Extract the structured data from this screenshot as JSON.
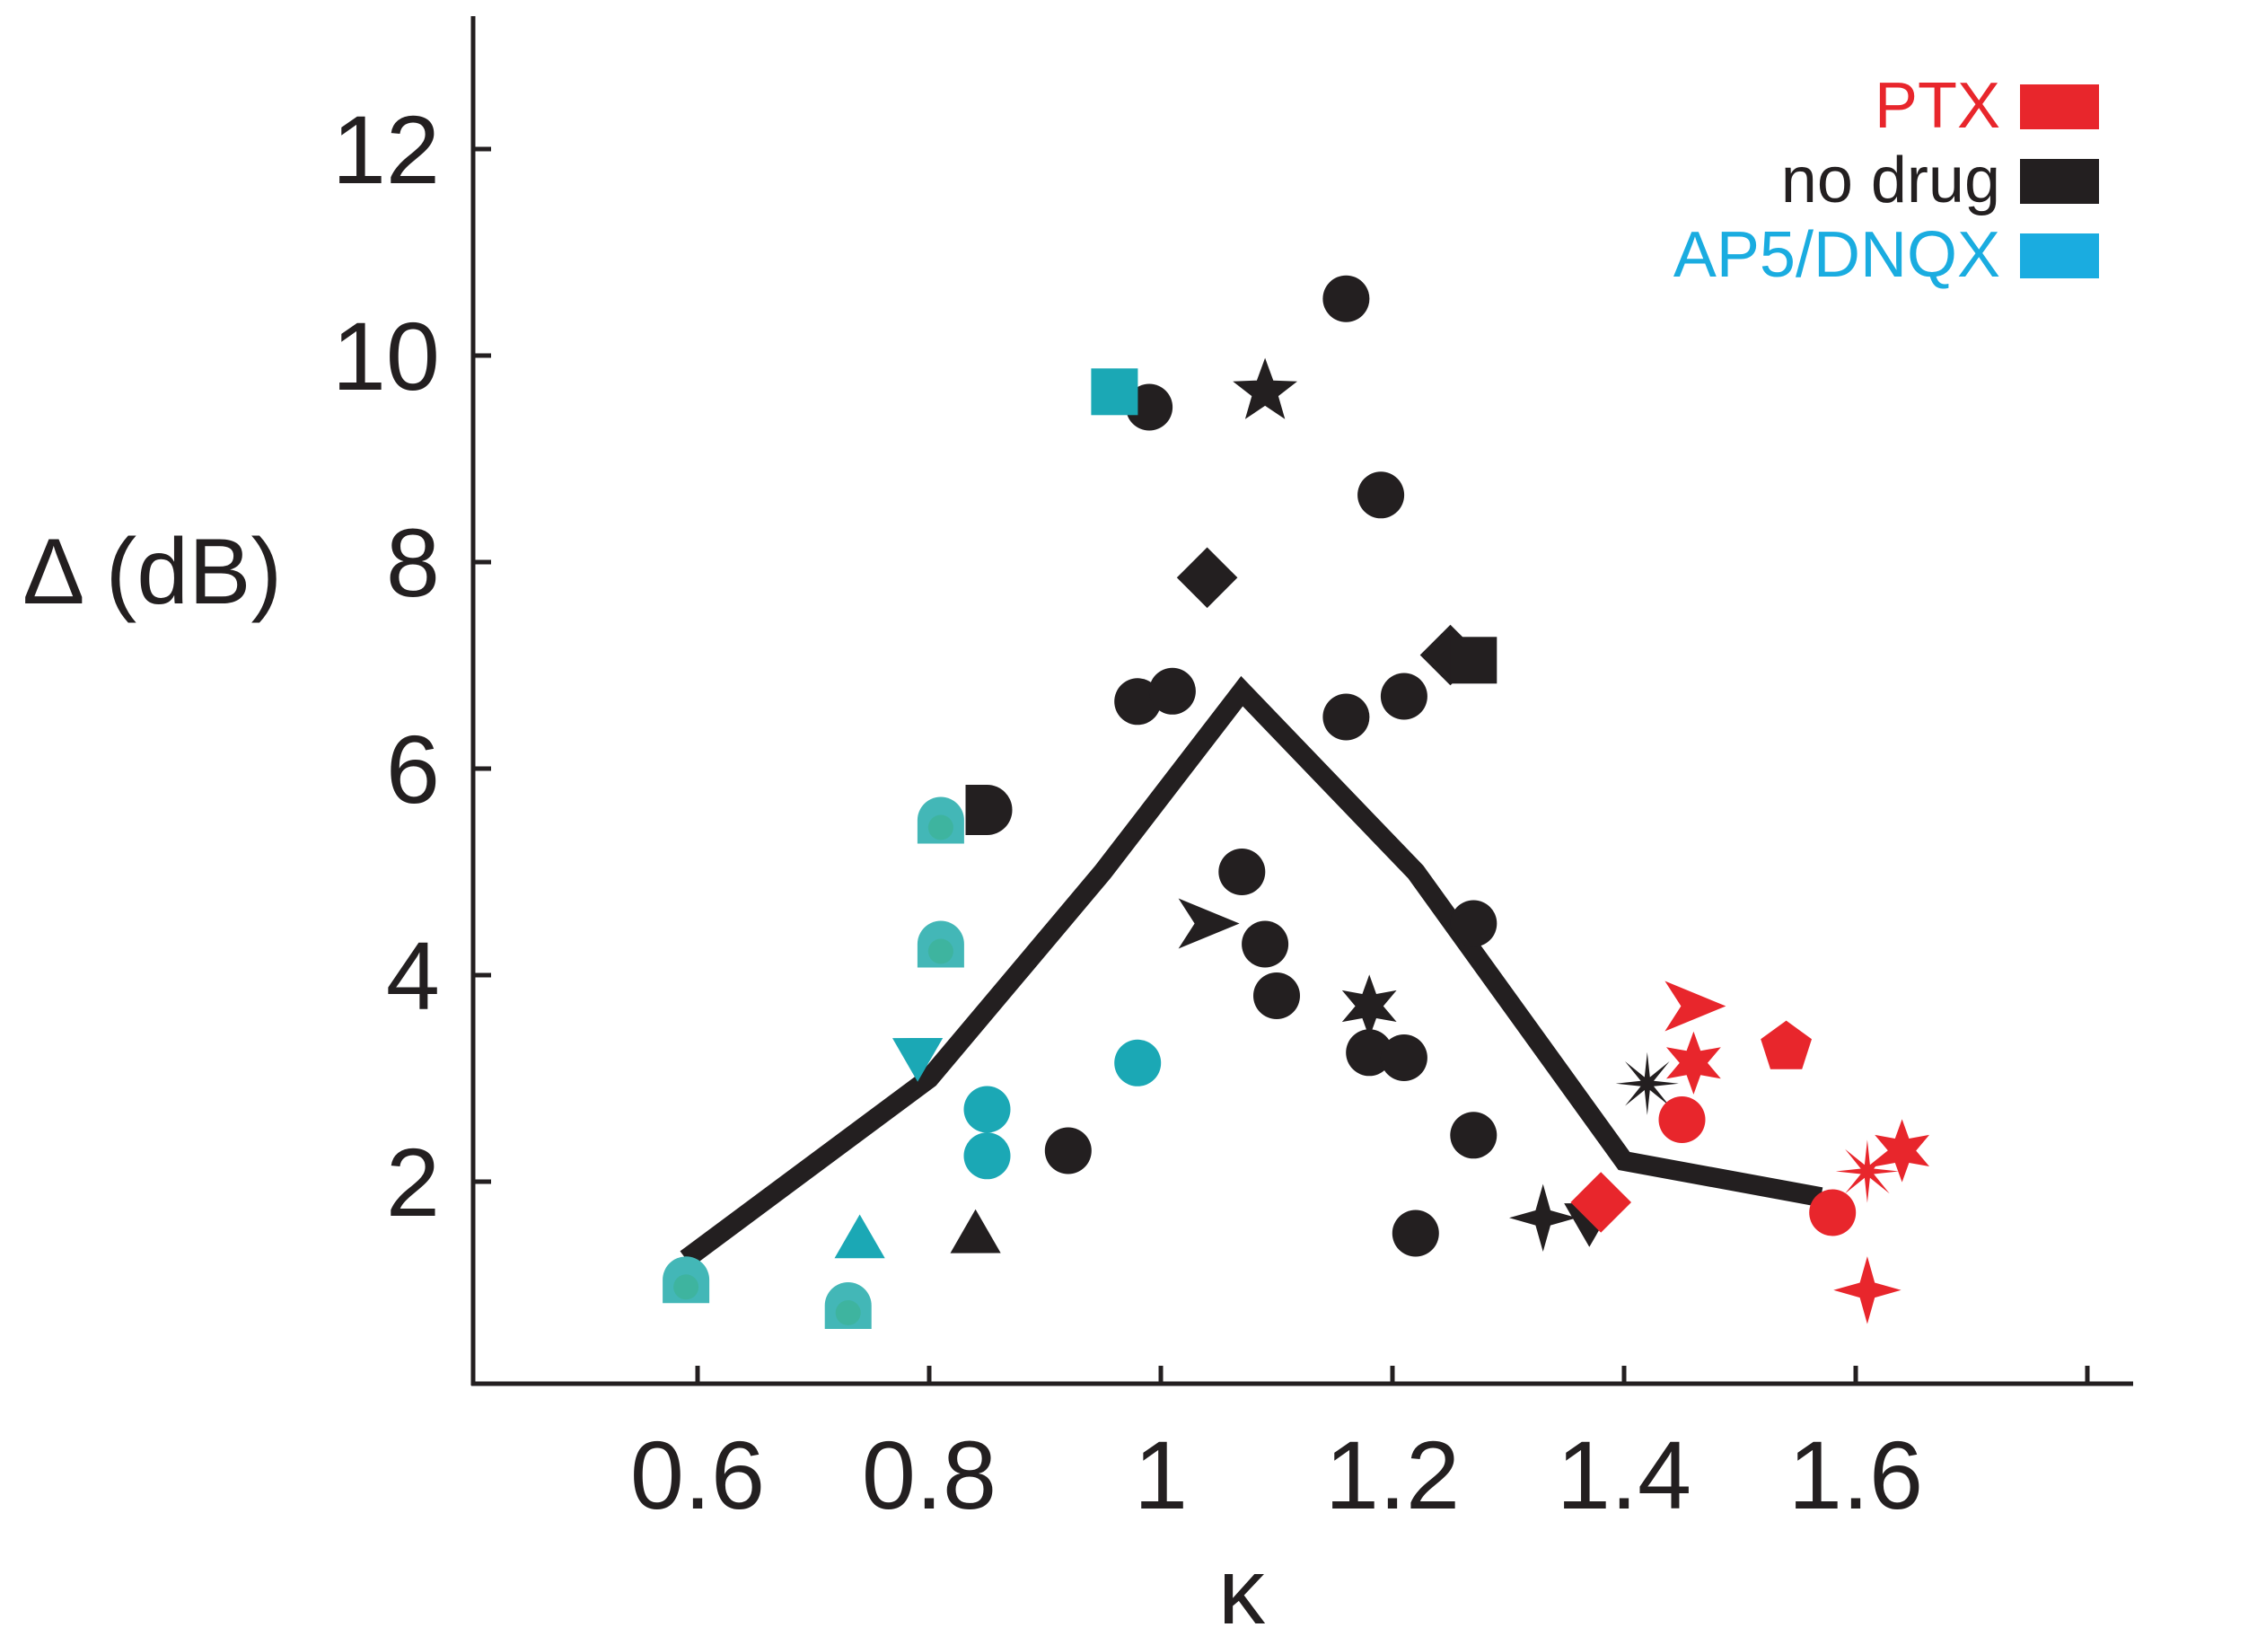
{
  "chart_data": {
    "type": "scatter",
    "xlabel": "κ",
    "ylabel": "Δ (dB)",
    "xlim": [
      0.4,
      1.8
    ],
    "ylim": [
      0,
      13.3
    ],
    "x_ticks": [
      0.6,
      0.8,
      1.0,
      1.2,
      1.4,
      1.6,
      1.8
    ],
    "x_tick_labels": [
      "0.6",
      "0.8",
      "1",
      "1.2",
      "1.4",
      "1.6",
      ""
    ],
    "y_ticks": [
      2,
      4,
      6,
      8,
      10,
      12
    ],
    "y_tick_labels": [
      "2",
      "4",
      "6",
      "8",
      "10",
      "12"
    ],
    "grid": false,
    "legend_position": "top-right",
    "legend": [
      {
        "label": "PTX",
        "color": "#e8262c"
      },
      {
        "label": "no drug",
        "color": "#231f20"
      },
      {
        "label": "AP5/DNQX",
        "color": "#1aace0"
      }
    ],
    "colors": {
      "ptx": "#e8262c",
      "no_drug": "#231f20",
      "ap5": "#1ba8b5",
      "ap5_light": "#43b7b7"
    },
    "trend_line": {
      "x": [
        0.59,
        0.8,
        0.95,
        1.07,
        1.22,
        1.4,
        1.57
      ],
      "y": [
        1.25,
        3.0,
        5.0,
        6.75,
        5.0,
        2.2,
        1.85
      ]
    },
    "series": [
      {
        "group": "no drug",
        "points": [
          {
            "x": 1.16,
            "y": 10.55,
            "marker": "circle"
          },
          {
            "x": 0.99,
            "y": 9.5,
            "marker": "circle"
          },
          {
            "x": 1.09,
            "y": 9.65,
            "marker": "star5"
          },
          {
            "x": 1.19,
            "y": 8.65,
            "marker": "circle"
          },
          {
            "x": 1.04,
            "y": 7.85,
            "marker": "diamond"
          },
          {
            "x": 1.25,
            "y": 7.1,
            "marker": "diamond"
          },
          {
            "x": 1.27,
            "y": 7.05,
            "marker": "square"
          },
          {
            "x": 0.98,
            "y": 6.65,
            "marker": "circle"
          },
          {
            "x": 1.01,
            "y": 6.75,
            "marker": "circle"
          },
          {
            "x": 1.16,
            "y": 6.5,
            "marker": "circle"
          },
          {
            "x": 1.21,
            "y": 6.7,
            "marker": "circle"
          },
          {
            "x": 0.85,
            "y": 5.6,
            "marker": "half-circle"
          },
          {
            "x": 1.07,
            "y": 5.0,
            "marker": "circle"
          },
          {
            "x": 1.04,
            "y": 4.5,
            "marker": "arrow-tri"
          },
          {
            "x": 1.09,
            "y": 4.3,
            "marker": "circle"
          },
          {
            "x": 1.1,
            "y": 3.8,
            "marker": "circle"
          },
          {
            "x": 1.18,
            "y": 3.7,
            "marker": "star6"
          },
          {
            "x": 1.18,
            "y": 3.25,
            "marker": "circle"
          },
          {
            "x": 1.21,
            "y": 3.2,
            "marker": "circle"
          },
          {
            "x": 1.27,
            "y": 4.5,
            "marker": "circle"
          },
          {
            "x": 1.27,
            "y": 2.45,
            "marker": "circle"
          },
          {
            "x": 0.92,
            "y": 2.3,
            "marker": "circle"
          },
          {
            "x": 0.84,
            "y": 1.45,
            "marker": "triangle-up"
          },
          {
            "x": 1.22,
            "y": 1.5,
            "marker": "circle"
          },
          {
            "x": 1.33,
            "y": 1.65,
            "marker": "star4"
          },
          {
            "x": 1.37,
            "y": 1.65,
            "marker": "triangle-down"
          },
          {
            "x": 1.42,
            "y": 2.95,
            "marker": "asterisk"
          }
        ]
      },
      {
        "group": "AP5/DNQX",
        "points": [
          {
            "x": 0.96,
            "y": 9.65,
            "marker": "square"
          },
          {
            "x": 0.81,
            "y": 5.5,
            "marker": "half-circle-light"
          },
          {
            "x": 0.81,
            "y": 4.3,
            "marker": "half-circle-light"
          },
          {
            "x": 0.79,
            "y": 3.25,
            "marker": "triangle-down"
          },
          {
            "x": 0.98,
            "y": 3.15,
            "marker": "circle"
          },
          {
            "x": 0.85,
            "y": 2.7,
            "marker": "circle"
          },
          {
            "x": 0.85,
            "y": 2.25,
            "marker": "circle"
          },
          {
            "x": 0.74,
            "y": 1.4,
            "marker": "triangle-up"
          },
          {
            "x": 0.59,
            "y": 1.05,
            "marker": "half-circle-light"
          },
          {
            "x": 0.73,
            "y": 0.8,
            "marker": "half-circle-light"
          }
        ]
      },
      {
        "group": "PTX",
        "points": [
          {
            "x": 1.46,
            "y": 3.7,
            "marker": "arrow-tri"
          },
          {
            "x": 1.46,
            "y": 3.15,
            "marker": "star6"
          },
          {
            "x": 1.54,
            "y": 3.3,
            "marker": "pentagon"
          },
          {
            "x": 1.45,
            "y": 2.6,
            "marker": "circle"
          },
          {
            "x": 1.61,
            "y": 2.1,
            "marker": "asterisk"
          },
          {
            "x": 1.64,
            "y": 2.3,
            "marker": "star6"
          },
          {
            "x": 1.58,
            "y": 1.7,
            "marker": "circle"
          },
          {
            "x": 1.38,
            "y": 1.8,
            "marker": "diamond"
          },
          {
            "x": 1.61,
            "y": 0.95,
            "marker": "star4"
          }
        ]
      }
    ]
  }
}
